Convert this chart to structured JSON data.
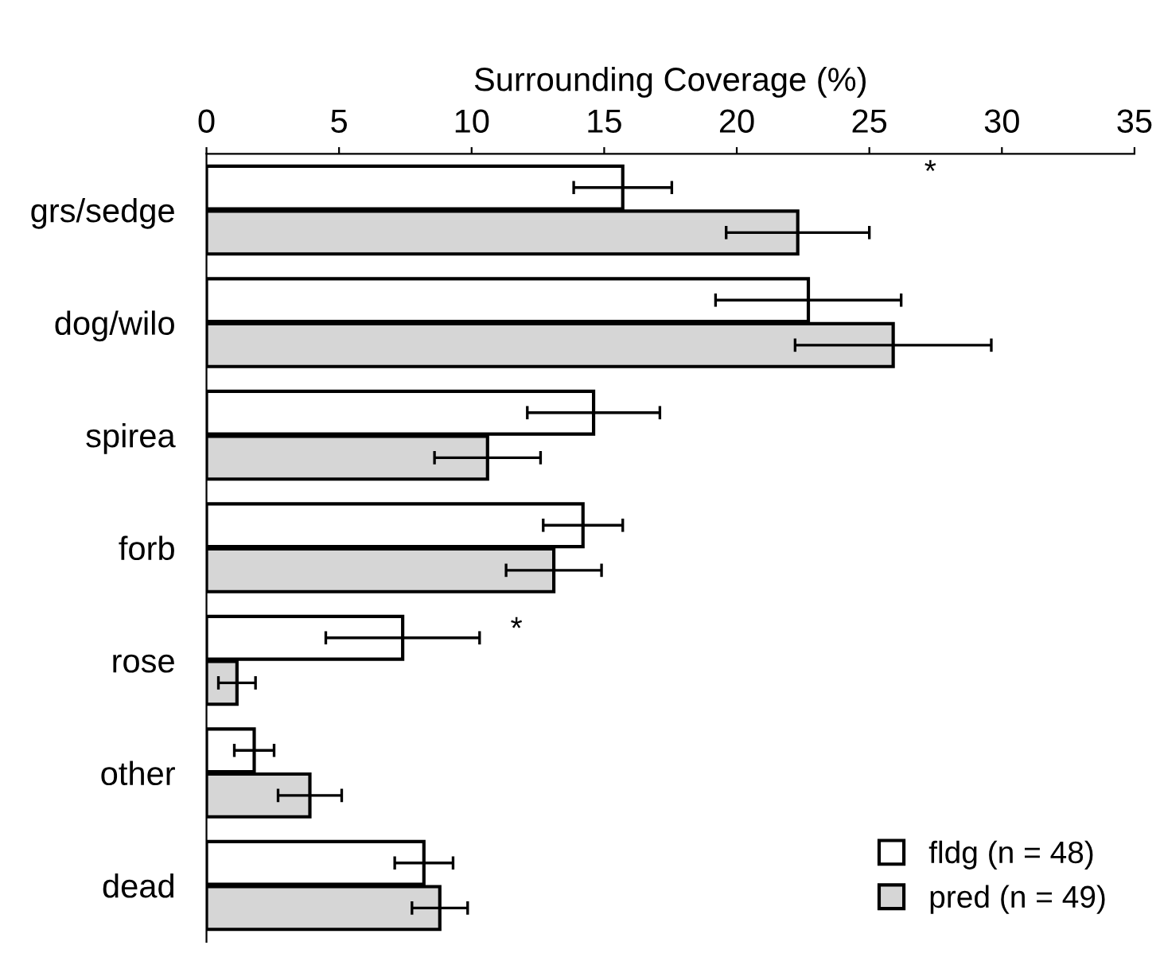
{
  "chart_data": {
    "type": "bar",
    "orientation": "horizontal",
    "xlabel": "Surrounding Coverage (%)",
    "categories": [
      "grs/sedge",
      "dog/wilo",
      "spirea",
      "forb",
      "rose",
      "other",
      "dead"
    ],
    "series": [
      {
        "name": "fldg (n = 48)",
        "color": "#ffffff",
        "values": [
          15.7,
          22.7,
          14.6,
          14.2,
          7.4,
          1.8,
          8.2
        ],
        "errors": [
          1.85,
          3.5,
          2.5,
          1.5,
          2.9,
          0.75,
          1.1
        ]
      },
      {
        "name": "pred (n = 49)",
        "color": "#d6d6d6",
        "values": [
          22.3,
          25.9,
          10.6,
          13.1,
          1.15,
          3.9,
          8.8
        ],
        "errors": [
          2.7,
          3.7,
          2.0,
          1.8,
          0.7,
          1.2,
          1.05
        ]
      }
    ],
    "xlim": [
      0,
      35
    ],
    "xticks": [
      0,
      5,
      10,
      15,
      20,
      25,
      30,
      35
    ],
    "annotations": [
      "*",
      "*"
    ],
    "legend": "bottom right",
    "grid": false
  }
}
